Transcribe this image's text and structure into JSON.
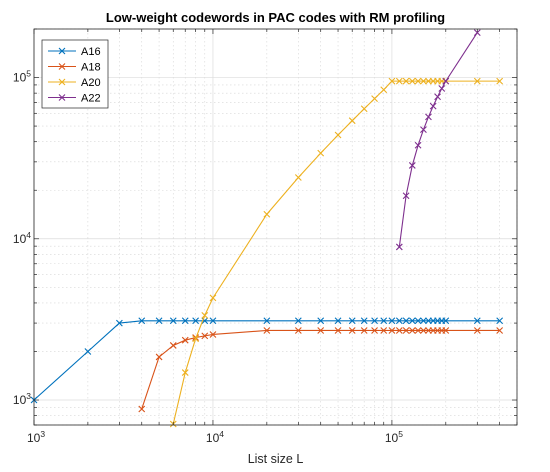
{
  "chart_data": {
    "type": "line",
    "title": "Low-weight codewords in PAC codes with RM profiling",
    "xlabel": "List size L",
    "ylabel": "",
    "xscale": "log",
    "yscale": "log",
    "xlim": [
      1000,
      500000
    ],
    "ylim": [
      700,
      200000
    ],
    "x_ticks": [
      {
        "base": "10",
        "exp": "3",
        "value": 1000
      },
      {
        "base": "10",
        "exp": "4",
        "value": 10000
      },
      {
        "base": "10",
        "exp": "5",
        "value": 100000
      }
    ],
    "y_ticks": [
      {
        "base": "10",
        "exp": "3",
        "value": 1000
      },
      {
        "base": "10",
        "exp": "4",
        "value": 10000
      },
      {
        "base": "10",
        "exp": "5",
        "value": 100000
      }
    ],
    "grid": true,
    "legend_position": "top-left",
    "series": [
      {
        "name": "A16",
        "color": "#0072bd",
        "marker": "x",
        "x": [
          1000,
          2000,
          3000,
          4000,
          5000,
          6000,
          7000,
          8000,
          9000,
          10000,
          20000,
          30000,
          40000,
          50000,
          60000,
          70000,
          80000,
          90000,
          100000,
          110000,
          120000,
          130000,
          140000,
          150000,
          160000,
          170000,
          180000,
          190000,
          200000,
          300000,
          400000
        ],
        "y": [
          1000,
          2000,
          3000,
          3100,
          3100,
          3100,
          3100,
          3100,
          3100,
          3100,
          3100,
          3100,
          3100,
          3100,
          3100,
          3100,
          3100,
          3100,
          3100,
          3100,
          3100,
          3100,
          3100,
          3100,
          3100,
          3100,
          3100,
          3100,
          3100,
          3100,
          3100
        ]
      },
      {
        "name": "A18",
        "color": "#d95319",
        "marker": "x",
        "x": [
          4000,
          5000,
          6000,
          7000,
          8000,
          9000,
          10000,
          20000,
          30000,
          40000,
          50000,
          60000,
          70000,
          80000,
          90000,
          100000,
          110000,
          120000,
          130000,
          140000,
          150000,
          160000,
          170000,
          180000,
          190000,
          200000,
          300000,
          400000
        ],
        "y": [
          880,
          1850,
          2180,
          2350,
          2440,
          2500,
          2550,
          2700,
          2700,
          2700,
          2700,
          2700,
          2700,
          2700,
          2700,
          2700,
          2700,
          2700,
          2700,
          2700,
          2700,
          2700,
          2700,
          2700,
          2700,
          2700,
          2700,
          2700
        ]
      },
      {
        "name": "A20",
        "color": "#edb120",
        "marker": "x",
        "x": [
          6000,
          7000,
          8000,
          9000,
          10000,
          20000,
          30000,
          40000,
          50000,
          60000,
          70000,
          80000,
          90000,
          100000,
          110000,
          120000,
          130000,
          140000,
          150000,
          160000,
          170000,
          180000,
          190000,
          200000,
          300000,
          400000
        ],
        "y": [
          710,
          1480,
          2400,
          3350,
          4300,
          14200,
          24000,
          34000,
          44000,
          54000,
          64000,
          74000,
          84000,
          95000,
          95000,
          95000,
          95000,
          95000,
          95000,
          95000,
          95000,
          95000,
          95000,
          95000,
          95000,
          95000
        ]
      },
      {
        "name": "A22",
        "color": "#7e2f8e",
        "marker": "x",
        "x": [
          110000,
          120000,
          130000,
          140000,
          150000,
          160000,
          170000,
          180000,
          190000,
          200000,
          300000
        ],
        "y": [
          8900,
          18500,
          28500,
          38000,
          47500,
          57000,
          66500,
          76000,
          85500,
          95000,
          190000
        ]
      }
    ]
  }
}
